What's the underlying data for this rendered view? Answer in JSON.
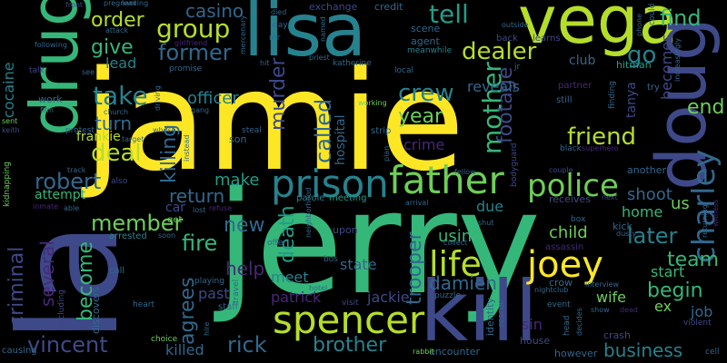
{
  "background": "#000000",
  "palette": {
    "yellow": "#fde725",
    "lime": "#b5de2b",
    "green": "#6ece58",
    "mint": "#35b779",
    "teal": "#1f9e89",
    "cyan": "#26828e",
    "blue": "#31688e",
    "indigo": "#3e4989",
    "purple": "#482878",
    "violet": "#440154"
  },
  "words": [
    "jamie",
    "jerry",
    "la",
    "kill",
    "lisa",
    "vega",
    "drug",
    "doug",
    "prison",
    "father",
    "spencer",
    "joey",
    "life",
    "police",
    "charley",
    "group",
    "tell",
    "find",
    "former",
    "order",
    "dealer",
    "give",
    "take",
    "deal",
    "robert",
    "crew",
    "mother",
    "friend",
    "killing",
    "murder",
    "called",
    "footage",
    "year",
    "end",
    "later",
    "begin",
    "team",
    "member",
    "fire",
    "new",
    "help",
    "return",
    "make",
    "criminal",
    "several",
    "become",
    "agrees",
    "death",
    "trooper",
    "damien",
    "vincent",
    "rick",
    "brother",
    "business",
    "patrick",
    "jackie",
    "meet",
    "state",
    "past",
    "child",
    "home",
    "us",
    "shoot",
    "wife",
    "ex",
    "job",
    "start",
    "killed",
    "attempt",
    "turn",
    "officer",
    "cocaine",
    "casino",
    "lead",
    "frankie",
    "hospital",
    "crime",
    "go",
    "becomes",
    "tanya",
    "club",
    "using",
    "due",
    "reveals",
    "car",
    "hitman",
    "agent",
    "credit",
    "scene",
    "exchange",
    "meanwhile",
    "learns",
    "back",
    "partner",
    "try",
    "still",
    "house",
    "however",
    "encounter",
    "rabbit",
    "crash",
    "sin",
    "interview",
    "crow",
    "event",
    "show",
    "assassin",
    "kick",
    "arrested",
    "discovers",
    "including",
    "causing",
    "choice",
    "staff",
    "travel",
    "visit",
    "puzzle",
    "upon",
    "bos",
    "parole",
    "meeting",
    "steal",
    "son",
    "work",
    "church",
    "strip",
    "plan",
    "fellow",
    "couple",
    "another",
    "black",
    "superhero",
    "receives",
    "next",
    "box",
    "dusty",
    "collect",
    "shut",
    "offer",
    "soon",
    "get",
    "lost",
    "heart",
    "hire",
    "call",
    "playing",
    "hotel",
    "nightclub",
    "rescue",
    "identity",
    "bodyguard",
    "head",
    "decides",
    "keith",
    "also",
    "able",
    "inmate",
    "kidnapping",
    "protest",
    "sent",
    "talk",
    "following",
    "front",
    "pregnant",
    "leaving",
    "girlfriend",
    "attack",
    "mercenary",
    "died",
    "day",
    "mr",
    "named",
    "priest",
    "katherine",
    "hit",
    "promise",
    "driving",
    "gang",
    "local",
    "working",
    "instead",
    "film",
    "see",
    "track",
    "increasingly",
    "phone",
    "could",
    "finding",
    "returning",
    "witness",
    "violent",
    "cell",
    "refuse",
    "outside",
    "jr",
    "arrival",
    "neighborhood",
    "dead",
    "target",
    "whose"
  ]
}
